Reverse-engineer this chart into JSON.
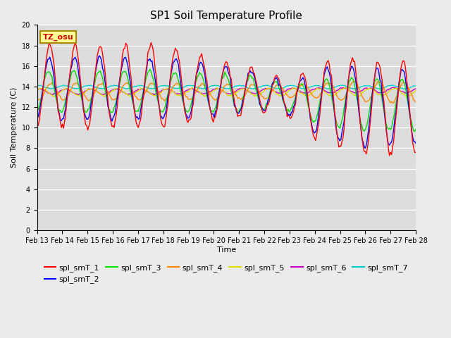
{
  "title": "SP1 Soil Temperature Profile",
  "xlabel": "Time",
  "ylabel": "Soil Temperature (C)",
  "ylim": [
    0,
    20
  ],
  "yticks": [
    0,
    2,
    4,
    6,
    8,
    10,
    12,
    14,
    16,
    18,
    20
  ],
  "x_labels": [
    "Feb 13",
    "Feb 14",
    "Feb 15",
    "Feb 16",
    "Feb 17",
    "Feb 18",
    "Feb 19",
    "Feb 20",
    "Feb 21",
    "Feb 22",
    "Feb 23",
    "Feb 24",
    "Feb 25",
    "Feb 26",
    "Feb 27",
    "Feb 28"
  ],
  "series_colors": {
    "spl_smT_1": "#ff0000",
    "spl_smT_2": "#0000ff",
    "spl_smT_3": "#00dd00",
    "spl_smT_4": "#ff8800",
    "spl_smT_5": "#dddd00",
    "spl_smT_6": "#cc00cc",
    "spl_smT_7": "#00cccc"
  },
  "annotation_text": "TZ_osu",
  "annotation_color": "#cc0000",
  "annotation_bg": "#ffff99",
  "annotation_border": "#aa8800",
  "bg_color": "#dcdcdc",
  "fig_color": "#ebebeb",
  "grid_color": "#ffffff",
  "title_fontsize": 11,
  "label_fontsize": 8,
  "tick_fontsize": 7,
  "legend_fontsize": 8
}
